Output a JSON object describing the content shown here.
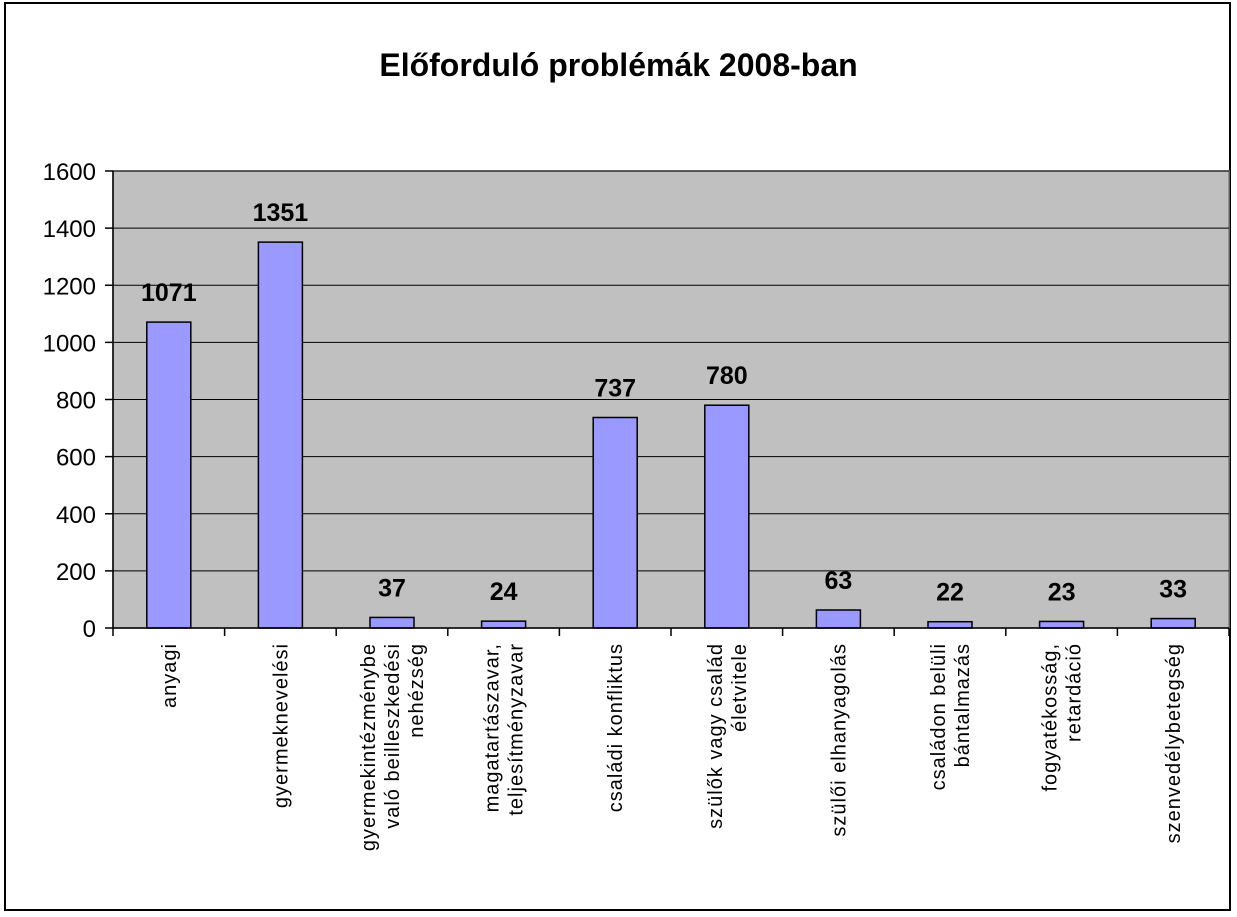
{
  "chart_data": {
    "type": "bar",
    "title": "Előforduló problémák 2008-ban",
    "xlabel": "",
    "ylabel": "",
    "ylim": [
      0,
      1600
    ],
    "y_ticks": [
      0,
      200,
      400,
      600,
      800,
      1000,
      1200,
      1400,
      1600
    ],
    "grid": true,
    "legend": "none",
    "colors": {
      "bar_fill": "#9999ff",
      "plot_background": "#c0c0c0",
      "gridline": "#000000"
    },
    "categories": [
      [
        "anyagi"
      ],
      [
        "gyermeknevelési"
      ],
      [
        "gyermekintézménybe",
        "való beilleszkedési",
        "nehézség"
      ],
      [
        "magatartászavar,",
        "teljesítményzavar"
      ],
      [
        "családi konfliktus"
      ],
      [
        "szülők vagy család",
        "életvitele"
      ],
      [
        "szülői elhanyagolás"
      ],
      [
        "családon belüli",
        "bántalmazás"
      ],
      [
        "fogyatékosság,",
        "retardáció"
      ],
      [
        "szenvedélybetegség"
      ]
    ],
    "values": [
      1071,
      1351,
      37,
      24,
      737,
      780,
      63,
      22,
      23,
      33
    ]
  }
}
